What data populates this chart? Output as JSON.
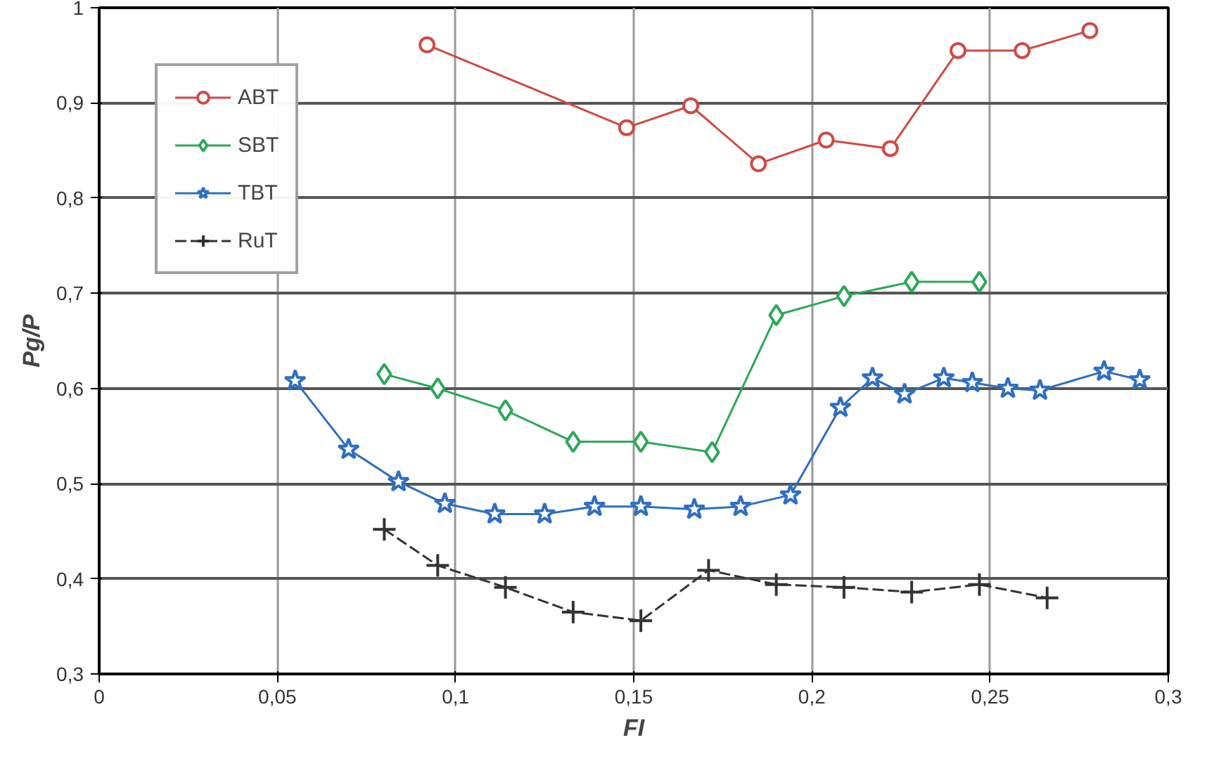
{
  "chart_data": {
    "type": "line",
    "xlabel": "FI",
    "ylabel": "Pg/P",
    "xlim": [
      0,
      0.3
    ],
    "ylim": [
      0.3,
      1
    ],
    "xticks": [
      0,
      {
        "value": 0.05,
        "label": "0,05"
      },
      {
        "value": 0.1,
        "label": "0,1"
      },
      {
        "value": 0.15,
        "label": "0,15"
      },
      {
        "value": 0.2,
        "label": "0,2"
      },
      {
        "value": 0.25,
        "label": "0,25"
      },
      {
        "value": 0.3,
        "label": "0,3"
      }
    ],
    "yticks": [
      {
        "value": 0.3,
        "label": "0,3"
      },
      {
        "value": 0.4,
        "label": "0,4"
      },
      {
        "value": 0.5,
        "label": "0,5"
      },
      {
        "value": 0.6,
        "label": "0,6"
      },
      {
        "value": 0.7,
        "label": "0,7"
      },
      {
        "value": 0.8,
        "label": "0,8"
      },
      {
        "value": 0.9,
        "label": "0,9"
      },
      1
    ],
    "grid": true,
    "legend": "top left",
    "series": [
      {
        "name": "ABT",
        "color": "#d04a45",
        "marker": "circle",
        "line_style": "solid",
        "x": [
          0.092,
          0.148,
          0.166,
          0.185,
          0.204,
          0.222,
          0.241,
          0.259,
          0.278
        ],
        "values": [
          0.961,
          0.874,
          0.897,
          0.836,
          0.861,
          0.852,
          0.955,
          0.955,
          0.976
        ]
      },
      {
        "name": "SBT",
        "color": "#2ea85a",
        "marker": "diamond",
        "line_style": "solid",
        "x": [
          0.08,
          0.095,
          0.114,
          0.133,
          0.152,
          0.172,
          0.19,
          0.209,
          0.228,
          0.247
        ],
        "values": [
          0.615,
          0.6,
          0.577,
          0.544,
          0.544,
          0.533,
          0.677,
          0.697,
          0.712,
          0.712
        ]
      },
      {
        "name": "TBT",
        "color": "#2f6fc0",
        "marker": "star",
        "line_style": "solid",
        "x": [
          0.055,
          0.07,
          0.084,
          0.097,
          0.111,
          0.125,
          0.139,
          0.152,
          0.167,
          0.18,
          0.194,
          0.208,
          0.217,
          0.226,
          0.237,
          0.245,
          0.255,
          0.264,
          0.282,
          0.292
        ],
        "values": [
          0.608,
          0.536,
          0.502,
          0.479,
          0.468,
          0.468,
          0.476,
          0.476,
          0.473,
          0.476,
          0.488,
          0.58,
          0.611,
          0.594,
          0.611,
          0.606,
          0.6,
          0.598,
          0.618,
          0.609
        ]
      },
      {
        "name": "RuT",
        "color": "#333333",
        "marker": "cross",
        "line_style": "dashed",
        "x": [
          0.08,
          0.095,
          0.114,
          0.133,
          0.152,
          0.171,
          0.19,
          0.209,
          0.228,
          0.247,
          0.266
        ],
        "values": [
          0.452,
          0.414,
          0.391,
          0.365,
          0.356,
          0.409,
          0.394,
          0.391,
          0.386,
          0.394,
          0.38
        ]
      }
    ]
  }
}
